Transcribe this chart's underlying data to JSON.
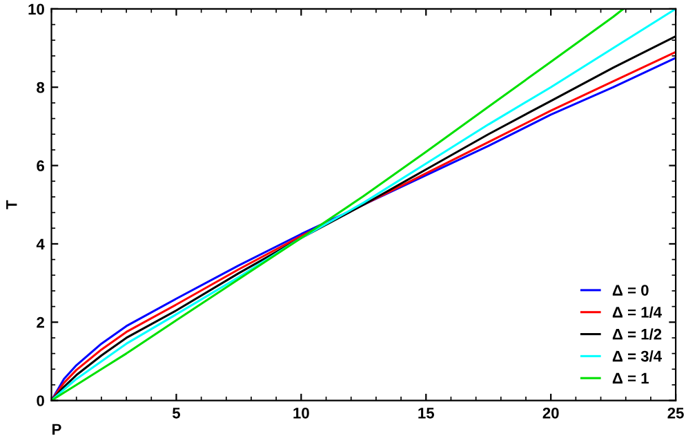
{
  "chart_data": {
    "type": "line",
    "xlabel": "P",
    "ylabel": "T",
    "xlim": [
      0,
      25
    ],
    "ylim": [
      0,
      10
    ],
    "xticks": [
      5,
      10,
      15,
      20,
      25
    ],
    "yticks": [
      0,
      2,
      4,
      6,
      8,
      10
    ],
    "grid": false,
    "legend": "bottom right",
    "marker": "none",
    "line_style": "solid",
    "x": [
      0,
      0.5,
      1,
      2,
      3,
      5,
      7.5,
      10,
      12.5,
      15,
      17.5,
      20,
      22.5,
      25
    ],
    "series": [
      {
        "name": "Δ = 0",
        "color": "#0000ff",
        "values": [
          0,
          0.55,
          0.9,
          1.45,
          1.9,
          2.6,
          3.45,
          4.25,
          5.0,
          5.75,
          6.5,
          7.3,
          8.0,
          8.75
        ]
      },
      {
        "name": "Δ = 1/4",
        "color": "#ff0000",
        "values": [
          0,
          0.45,
          0.78,
          1.3,
          1.75,
          2.45,
          3.35,
          4.2,
          5.0,
          5.8,
          6.6,
          7.4,
          8.15,
          8.9
        ]
      },
      {
        "name": "Δ = 1/2",
        "color": "#000000",
        "values": [
          0,
          0.35,
          0.65,
          1.15,
          1.6,
          2.3,
          3.25,
          4.15,
          5.0,
          5.9,
          6.8,
          7.65,
          8.5,
          9.3
        ]
      },
      {
        "name": "Δ = 3/4",
        "color": "#00ffff",
        "values": [
          0,
          0.28,
          0.55,
          1.0,
          1.45,
          2.2,
          3.15,
          4.15,
          5.05,
          6.05,
          7.05,
          8.0,
          9.0,
          10
        ]
      },
      {
        "name": "Δ = 1",
        "color": "#00e000",
        "x": [
          0,
          0.5,
          1,
          2,
          3,
          5,
          7.5,
          10,
          12.5,
          15,
          17.5,
          20,
          22.5,
          22.9
        ],
        "values": [
          0,
          0.2,
          0.4,
          0.8,
          1.2,
          2.05,
          3.1,
          4.15,
          5.22,
          6.35,
          7.5,
          8.65,
          9.8,
          10
        ]
      }
    ]
  }
}
